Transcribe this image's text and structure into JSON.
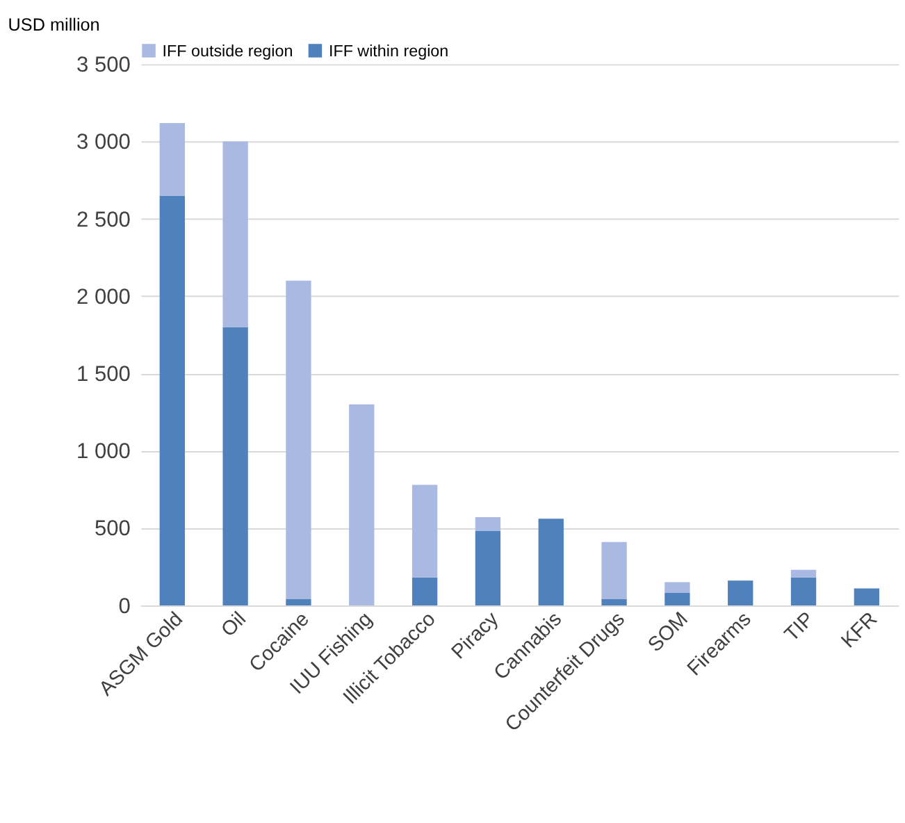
{
  "chart_data": {
    "type": "bar",
    "stacked": true,
    "ylabel": "USD million",
    "categories": [
      "ASGM Gold",
      "Oil",
      "Cocaine",
      "IUU Fishing",
      "Illicit Tobacco",
      "Piracy",
      "Cannabis",
      "Counterfeit Drugs",
      "SOM",
      "Firearms",
      "TIP",
      "KFR"
    ],
    "series": [
      {
        "name": "IFF within region",
        "color": "#4f81bd",
        "values": [
          2650,
          1800,
          40,
          0,
          180,
          480,
          560,
          40,
          80,
          160,
          180,
          110
        ]
      },
      {
        "name": "IFF outside region",
        "color": "#a9b9e2",
        "values": [
          470,
          1200,
          2060,
          1300,
          600,
          90,
          null,
          370,
          70,
          0,
          50,
          0
        ]
      }
    ],
    "ylim": [
      0,
      3500
    ],
    "yticks": [
      0,
      500,
      {
        "value": 1000,
        "label": "1 000"
      },
      {
        "value": 1500,
        "label": "1 500"
      },
      {
        "value": 2000,
        "label": "2 000"
      },
      {
        "value": 2500,
        "label": "2 500"
      },
      {
        "value": 3000,
        "label": "3 000"
      },
      {
        "value": 3500,
        "label": "3 500"
      }
    ],
    "grid": "y",
    "legend": "top"
  }
}
